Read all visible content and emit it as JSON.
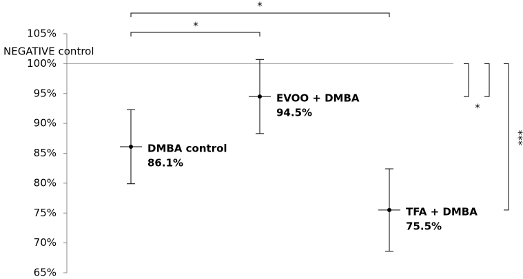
{
  "chart_data": {
    "type": "scatter",
    "categories": [
      "DMBA control",
      "EVOO + DMBA",
      "TFA + DMBA"
    ],
    "values": [
      86.1,
      94.5,
      75.5
    ],
    "value_labels": [
      "86.1%",
      "94.5%",
      "75.5%"
    ],
    "errors": [
      6.2,
      6.2,
      6.9
    ],
    "color": "#000000",
    "ylim": [
      65,
      105
    ],
    "yticks": [
      {
        "value": 65,
        "label": "65%"
      },
      {
        "value": 70,
        "label": "70%"
      },
      {
        "value": 75,
        "label": "75%"
      },
      {
        "value": 80,
        "label": "80%"
      },
      {
        "value": 85,
        "label": "85%"
      },
      {
        "value": 90,
        "label": "90%"
      },
      {
        "value": 95,
        "label": "95%"
      },
      {
        "value": 100,
        "label": "100%"
      },
      {
        "value": 105,
        "label": "105%"
      }
    ],
    "reference_line": {
      "value": 100,
      "label": "NEGATIVE control"
    },
    "significance": [
      "*",
      "*",
      "*",
      "***"
    ]
  }
}
